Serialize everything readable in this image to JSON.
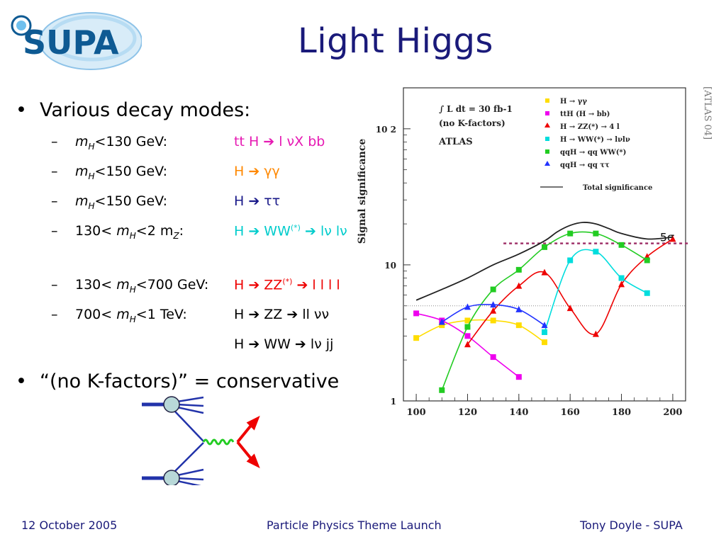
{
  "logo": {
    "text": "SUPA"
  },
  "slide": {
    "title": "Light Higgs"
  },
  "bullet1": "Various decay modes:",
  "bullet2": "“(no K-factors)” = conservative",
  "modes": [
    {
      "dash": "–",
      "m": "m",
      "mSub": "H",
      "cond": "<130 GeV:",
      "proc": "tt H",
      "arrow": "➔",
      "rest": " l νX bb",
      "color": "#e61ab3"
    },
    {
      "dash": "–",
      "m": "m",
      "mSub": "H",
      "cond": "<150 GeV:",
      "proc": "H",
      "arrow": "➔",
      "rest": " γγ",
      "color": "#ff8800"
    },
    {
      "dash": "–",
      "m": "m",
      "mSub": "H",
      "cond": "<150 GeV:",
      "proc": "H",
      "arrow": "➔",
      "rest": " ττ",
      "color": "#1a1a8a"
    },
    {
      "dash": "–",
      "pre": "130< ",
      "m": "m",
      "mSub": "H",
      "cond": "<2 m",
      "condSub": "Z",
      "condEnd": ":",
      "proc": "H",
      "arrow": "➔",
      "rest": " WW",
      "sup": "(*)",
      "rest2": " ➔ lν lν",
      "color": "#00cccc"
    },
    {
      "dash": "–",
      "pre": "130< ",
      "m": "m",
      "mSub": "H",
      "cond": "<700 GeV:",
      "proc": "H",
      "arrow": "➔",
      "rest": " ZZ",
      "sup": "(*)",
      "rest2": " ➔ l l l l",
      "color": "#ee0000"
    },
    {
      "dash": "–",
      "pre": "700< ",
      "m": "m",
      "mSub": "H",
      "cond": "<1 TeV:",
      "proc": "H",
      "arrow": "➔",
      "rest": " ZZ ➔ ll νν",
      "color": "#000000"
    },
    {
      "proc": "H",
      "arrow": "➔",
      "rest": " WW ➔ lν jj",
      "color": "#000000"
    }
  ],
  "chart_data": {
    "type": "line",
    "ylabel": "Signal significance",
    "yscale": "log",
    "ylim": [
      1,
      200
    ],
    "xlim": [
      95,
      205
    ],
    "x_ticks": [
      100,
      120,
      140,
      160,
      180,
      200
    ],
    "y_ticks": [
      {
        "label": "1",
        "value": 1
      },
      {
        "label": "10",
        "value": 10
      },
      {
        "label": "10 2",
        "value": 100
      }
    ],
    "legend_header": [
      "∫ L dt = 30 fb-1",
      "(no K-factors)",
      "ATLAS"
    ],
    "five_sigma_label": "5σ",
    "five_sigma_value": 5,
    "series": [
      {
        "name": "H → γγ",
        "color": "#ffdd00",
        "marker": "square",
        "x": [
          100,
          110,
          120,
          130,
          140,
          150
        ],
        "y": [
          2.9,
          3.6,
          3.9,
          3.9,
          3.6,
          2.7
        ]
      },
      {
        "name": "ttH (H → bb)",
        "color": "#ee00ee",
        "marker": "square",
        "x": [
          100,
          110,
          120,
          130,
          140
        ],
        "y": [
          4.4,
          3.9,
          3.0,
          2.1,
          1.5
        ]
      },
      {
        "name": "H → ZZ(*) → 4 l",
        "color": "#ee0000",
        "marker": "triangle",
        "x": [
          120,
          130,
          140,
          150,
          160,
          170,
          180,
          190,
          200
        ],
        "y": [
          2.6,
          4.6,
          7.0,
          8.8,
          4.8,
          3.1,
          7.2,
          11.5,
          15.5
        ]
      },
      {
        "name": "H → WW(*) → lνlν",
        "color": "#00dddd",
        "marker": "square",
        "x": [
          150,
          160,
          170,
          180,
          190
        ],
        "y": [
          3.2,
          10.8,
          12.5,
          8.0,
          6.2
        ]
      },
      {
        "name": "qqH → qq WW(*)",
        "color": "#22cc22",
        "marker": "square",
        "x": [
          110,
          120,
          130,
          140,
          150,
          160,
          170,
          180,
          190
        ],
        "y": [
          1.2,
          3.5,
          6.6,
          9.2,
          13.5,
          17.0,
          17.0,
          14.0,
          10.8
        ]
      },
      {
        "name": "qqH → qq ττ",
        "color": "#2233ff",
        "marker": "triangle",
        "x": [
          110,
          120,
          130,
          140,
          150
        ],
        "y": [
          3.8,
          4.9,
          5.1,
          4.7,
          3.6
        ]
      },
      {
        "name": "Total significance",
        "color": "#222222",
        "marker": "none",
        "x": [
          100,
          110,
          120,
          130,
          140,
          150,
          155,
          160,
          165,
          170,
          175,
          180,
          190,
          200
        ],
        "y": [
          5.5,
          6.6,
          8.0,
          10.0,
          12.0,
          15.0,
          17.5,
          19.5,
          20.5,
          20.0,
          18.5,
          17.0,
          15.5,
          16.0
        ]
      }
    ]
  },
  "reference": "[ATLAS 04]",
  "footer": {
    "date": "12 October 2005",
    "event": "Particle Physics Theme Launch",
    "author": "Tony Doyle - SUPA"
  }
}
